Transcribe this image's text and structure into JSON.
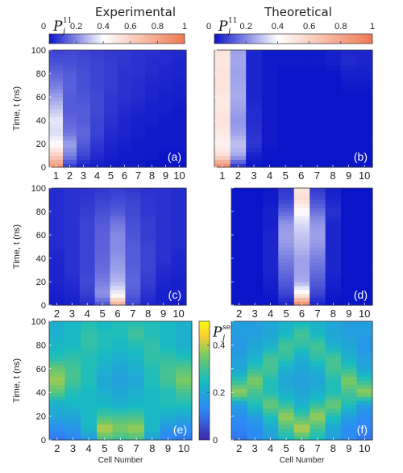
{
  "figure": {
    "col_titles": [
      "Experimental",
      "Theoretical"
    ],
    "y_axis_label": "Time, t (ns)",
    "x_axis_label": "Cell Number",
    "cbar_top": {
      "symbol": "P",
      "sub": "j",
      "sup": "11",
      "ticks": [
        "0",
        "0.2",
        "0.4",
        "0.6",
        "0.8",
        "1"
      ]
    },
    "cbar_side": {
      "symbol": "P",
      "sub": "j",
      "sup": "se",
      "ticks": [
        "0",
        "0.2",
        "0.4"
      ]
    },
    "colors": {
      "low": "#0a14c8",
      "mid": "#ffffff",
      "high": "#f07850",
      "parula": [
        "#3e26a8",
        "#2e87f7",
        "#18bcc0",
        "#73c868",
        "#f9d130",
        "#f9fb0e"
      ]
    }
  },
  "chart_data": [
    {
      "type": "heatmap",
      "panel_label": "(a)",
      "x_label": "Cell Number",
      "y_label": "Time, t (ns)",
      "x_ticks": [
        1,
        2,
        3,
        4,
        5,
        6,
        7,
        8,
        9,
        10
      ],
      "y_ticks": [
        0,
        20,
        40,
        60,
        80,
        100
      ],
      "xlim": [
        1,
        10
      ],
      "ylim": [
        0,
        100
      ],
      "colormap": "blue-white-orange",
      "clim": [
        0,
        1
      ],
      "cells": [
        1,
        2,
        3,
        4,
        5,
        6,
        7,
        8,
        9,
        10
      ],
      "times": [
        0,
        10,
        20,
        30,
        40,
        50,
        60,
        70,
        80,
        90,
        100
      ],
      "values": [
        [
          0.88,
          0.06,
          0.02,
          0.01,
          0.01,
          0.01,
          0.01,
          0.0,
          0.0,
          0.0
        ],
        [
          0.62,
          0.18,
          0.08,
          0.04,
          0.02,
          0.01,
          0.01,
          0.01,
          0.0,
          0.0
        ],
        [
          0.4,
          0.24,
          0.12,
          0.06,
          0.03,
          0.02,
          0.01,
          0.01,
          0.01,
          0.01
        ],
        [
          0.34,
          0.16,
          0.14,
          0.08,
          0.04,
          0.03,
          0.02,
          0.01,
          0.01,
          0.01
        ],
        [
          0.36,
          0.14,
          0.12,
          0.08,
          0.05,
          0.03,
          0.02,
          0.02,
          0.01,
          0.01
        ],
        [
          0.3,
          0.12,
          0.12,
          0.09,
          0.06,
          0.04,
          0.03,
          0.02,
          0.02,
          0.01
        ],
        [
          0.24,
          0.12,
          0.11,
          0.09,
          0.06,
          0.05,
          0.04,
          0.03,
          0.02,
          0.02
        ],
        [
          0.18,
          0.13,
          0.1,
          0.08,
          0.07,
          0.05,
          0.04,
          0.03,
          0.03,
          0.02
        ],
        [
          0.14,
          0.12,
          0.1,
          0.08,
          0.07,
          0.05,
          0.05,
          0.04,
          0.03,
          0.03
        ],
        [
          0.1,
          0.1,
          0.09,
          0.08,
          0.07,
          0.06,
          0.05,
          0.04,
          0.04,
          0.03
        ],
        [
          0.08,
          0.09,
          0.08,
          0.07,
          0.06,
          0.06,
          0.05,
          0.05,
          0.04,
          0.04
        ]
      ]
    },
    {
      "type": "heatmap",
      "panel_label": "(b)",
      "x_label": "Cell Number",
      "y_label": "Time, t (ns)",
      "x_ticks": [
        1,
        2,
        3,
        4,
        5,
        6,
        7,
        8,
        9,
        10
      ],
      "y_ticks": [
        0,
        20,
        40,
        60,
        80,
        100
      ],
      "xlim": [
        1,
        10
      ],
      "ylim": [
        0,
        100
      ],
      "colormap": "blue-white-orange",
      "clim": [
        0,
        1
      ],
      "cells": [
        1,
        2,
        3,
        4,
        5,
        6,
        7,
        8,
        9,
        10
      ],
      "times": [
        0,
        10,
        20,
        30,
        40,
        50,
        60,
        70,
        80,
        90,
        100
      ],
      "values": [
        [
          0.95,
          0.03,
          0.0,
          0.0,
          0.0,
          0.0,
          0.0,
          0.0,
          0.0,
          0.0
        ],
        [
          0.55,
          0.25,
          0.02,
          0.0,
          0.0,
          0.0,
          0.0,
          0.0,
          0.0,
          0.0
        ],
        [
          0.45,
          0.3,
          0.06,
          0.01,
          0.0,
          0.0,
          0.0,
          0.0,
          0.0,
          0.0
        ],
        [
          0.5,
          0.24,
          0.05,
          0.01,
          0.0,
          0.0,
          0.0,
          0.0,
          0.0,
          0.0
        ],
        [
          0.52,
          0.22,
          0.04,
          0.01,
          0.0,
          0.0,
          0.0,
          0.0,
          0.0,
          0.0
        ],
        [
          0.5,
          0.24,
          0.04,
          0.01,
          0.0,
          0.0,
          0.0,
          0.0,
          0.0,
          0.0
        ],
        [
          0.5,
          0.26,
          0.03,
          0.01,
          0.0,
          0.0,
          0.0,
          0.0,
          0.0,
          0.0
        ],
        [
          0.52,
          0.25,
          0.03,
          0.01,
          0.0,
          0.0,
          0.0,
          0.0,
          0.01,
          0.01
        ],
        [
          0.52,
          0.24,
          0.03,
          0.01,
          0.0,
          0.0,
          0.0,
          0.0,
          0.02,
          0.02
        ],
        [
          0.5,
          0.25,
          0.03,
          0.01,
          0.01,
          0.01,
          0.01,
          0.02,
          0.04,
          0.03
        ],
        [
          0.52,
          0.24,
          0.03,
          0.01,
          0.01,
          0.01,
          0.01,
          0.02,
          0.03,
          0.03
        ]
      ]
    },
    {
      "type": "heatmap",
      "panel_label": "(c)",
      "x_label": "Cell Number",
      "y_label": "Time, t (ns)",
      "x_ticks": [
        2,
        3,
        4,
        5,
        6,
        7,
        8,
        9,
        10
      ],
      "y_ticks": [
        0,
        20,
        40,
        60,
        80,
        100
      ],
      "xlim": [
        2,
        10
      ],
      "ylim": [
        0,
        100
      ],
      "colormap": "blue-white-orange",
      "clim": [
        0,
        1
      ],
      "cells": [
        2,
        3,
        4,
        5,
        6,
        7,
        8,
        9,
        10
      ],
      "times": [
        0,
        10,
        20,
        30,
        40,
        50,
        60,
        70,
        80,
        90,
        100
      ],
      "values": [
        [
          0.01,
          0.02,
          0.04,
          0.1,
          0.8,
          0.08,
          0.03,
          0.02,
          0.01
        ],
        [
          0.02,
          0.03,
          0.07,
          0.22,
          0.38,
          0.12,
          0.05,
          0.02,
          0.02
        ],
        [
          0.03,
          0.04,
          0.09,
          0.18,
          0.28,
          0.14,
          0.07,
          0.03,
          0.02
        ],
        [
          0.03,
          0.05,
          0.08,
          0.15,
          0.24,
          0.13,
          0.08,
          0.04,
          0.03
        ],
        [
          0.03,
          0.05,
          0.08,
          0.14,
          0.22,
          0.12,
          0.08,
          0.05,
          0.03
        ],
        [
          0.04,
          0.05,
          0.08,
          0.13,
          0.2,
          0.12,
          0.08,
          0.05,
          0.04
        ],
        [
          0.04,
          0.05,
          0.08,
          0.13,
          0.2,
          0.11,
          0.07,
          0.05,
          0.04
        ],
        [
          0.04,
          0.05,
          0.08,
          0.12,
          0.17,
          0.1,
          0.07,
          0.05,
          0.04
        ],
        [
          0.04,
          0.05,
          0.07,
          0.1,
          0.12,
          0.09,
          0.06,
          0.05,
          0.04
        ],
        [
          0.04,
          0.05,
          0.06,
          0.08,
          0.09,
          0.08,
          0.06,
          0.05,
          0.04
        ],
        [
          0.04,
          0.05,
          0.05,
          0.06,
          0.07,
          0.06,
          0.05,
          0.05,
          0.04
        ]
      ]
    },
    {
      "type": "heatmap",
      "panel_label": "(d)",
      "x_label": "Cell Number",
      "y_label": "Time, t (ns)",
      "x_ticks": [
        2,
        3,
        4,
        5,
        6,
        7,
        8,
        9,
        10
      ],
      "y_ticks": [
        0,
        20,
        40,
        60,
        80,
        100
      ],
      "xlim": [
        2,
        10
      ],
      "ylim": [
        0,
        100
      ],
      "colormap": "blue-white-orange",
      "clim": [
        0,
        1
      ],
      "cells": [
        2,
        3,
        4,
        5,
        6,
        7,
        8,
        9,
        10
      ],
      "times": [
        0,
        10,
        20,
        30,
        40,
        50,
        60,
        70,
        80,
        90,
        100
      ],
      "values": [
        [
          0.0,
          0.0,
          0.0,
          0.02,
          0.96,
          0.02,
          0.0,
          0.0,
          0.0
        ],
        [
          0.0,
          0.0,
          0.01,
          0.08,
          0.45,
          0.08,
          0.01,
          0.0,
          0.0
        ],
        [
          0.0,
          0.0,
          0.02,
          0.12,
          0.26,
          0.12,
          0.02,
          0.0,
          0.0
        ],
        [
          0.0,
          0.0,
          0.03,
          0.15,
          0.24,
          0.15,
          0.03,
          0.0,
          0.0
        ],
        [
          0.0,
          0.0,
          0.03,
          0.18,
          0.24,
          0.18,
          0.03,
          0.0,
          0.0
        ],
        [
          0.0,
          0.0,
          0.03,
          0.22,
          0.28,
          0.22,
          0.03,
          0.0,
          0.0
        ],
        [
          0.0,
          0.0,
          0.03,
          0.24,
          0.3,
          0.24,
          0.03,
          0.0,
          0.0
        ],
        [
          0.0,
          0.0,
          0.02,
          0.22,
          0.34,
          0.22,
          0.03,
          0.0,
          0.0
        ],
        [
          0.0,
          0.0,
          0.02,
          0.14,
          0.4,
          0.16,
          0.05,
          0.0,
          0.0
        ],
        [
          0.0,
          0.0,
          0.01,
          0.08,
          0.55,
          0.1,
          0.03,
          0.0,
          0.0
        ],
        [
          0.0,
          0.0,
          0.01,
          0.06,
          0.5,
          0.06,
          0.02,
          0.0,
          0.0
        ]
      ]
    },
    {
      "type": "heatmap",
      "panel_label": "(e)",
      "x_label": "Cell Number",
      "y_label": "Time, t (ns)",
      "x_ticks": [
        2,
        3,
        4,
        5,
        6,
        7,
        8,
        9,
        10
      ],
      "y_ticks": [
        0,
        20,
        40,
        60,
        80,
        100
      ],
      "xlim": [
        2,
        10
      ],
      "ylim": [
        0,
        100
      ],
      "colormap": "parula",
      "clim": [
        0,
        0.5
      ],
      "cells": [
        2,
        3,
        4,
        5,
        6,
        7,
        8,
        9,
        10
      ],
      "times": [
        0,
        10,
        20,
        30,
        40,
        50,
        60,
        70,
        80,
        90,
        100
      ],
      "values": [
        [
          0.1,
          0.12,
          0.16,
          0.3,
          0.28,
          0.3,
          0.18,
          0.12,
          0.1
        ],
        [
          0.14,
          0.16,
          0.24,
          0.4,
          0.36,
          0.38,
          0.24,
          0.16,
          0.14
        ],
        [
          0.2,
          0.2,
          0.24,
          0.3,
          0.3,
          0.3,
          0.24,
          0.22,
          0.2
        ],
        [
          0.22,
          0.24,
          0.24,
          0.24,
          0.22,
          0.24,
          0.24,
          0.26,
          0.26
        ],
        [
          0.32,
          0.26,
          0.24,
          0.22,
          0.2,
          0.22,
          0.24,
          0.26,
          0.3
        ],
        [
          0.38,
          0.3,
          0.26,
          0.2,
          0.18,
          0.2,
          0.26,
          0.3,
          0.36
        ],
        [
          0.34,
          0.3,
          0.26,
          0.22,
          0.2,
          0.22,
          0.26,
          0.3,
          0.32
        ],
        [
          0.26,
          0.28,
          0.26,
          0.24,
          0.22,
          0.24,
          0.28,
          0.28,
          0.26
        ],
        [
          0.24,
          0.24,
          0.28,
          0.26,
          0.24,
          0.26,
          0.28,
          0.24,
          0.22
        ],
        [
          0.22,
          0.24,
          0.28,
          0.26,
          0.26,
          0.3,
          0.26,
          0.24,
          0.22
        ],
        [
          0.22,
          0.24,
          0.26,
          0.24,
          0.26,
          0.26,
          0.26,
          0.24,
          0.22
        ]
      ]
    },
    {
      "type": "heatmap",
      "panel_label": "(f)",
      "x_label": "Cell Number",
      "y_label": "Time, t (ns)",
      "x_ticks": [
        2,
        3,
        4,
        5,
        6,
        7,
        8,
        9,
        10
      ],
      "y_ticks": [
        0,
        20,
        40,
        60,
        80,
        100
      ],
      "xlim": [
        2,
        10
      ],
      "ylim": [
        0,
        100
      ],
      "colormap": "parula",
      "clim": [
        0,
        0.5
      ],
      "cells": [
        2,
        3,
        4,
        5,
        6,
        7,
        8,
        9,
        10
      ],
      "times": [
        0,
        10,
        20,
        30,
        40,
        50,
        60,
        70,
        80,
        90,
        100
      ],
      "values": [
        [
          0.1,
          0.14,
          0.18,
          0.24,
          0.28,
          0.24,
          0.18,
          0.14,
          0.1
        ],
        [
          0.12,
          0.14,
          0.2,
          0.3,
          0.4,
          0.3,
          0.2,
          0.14,
          0.12
        ],
        [
          0.14,
          0.18,
          0.26,
          0.38,
          0.3,
          0.38,
          0.26,
          0.18,
          0.14
        ],
        [
          0.18,
          0.26,
          0.34,
          0.28,
          0.22,
          0.28,
          0.34,
          0.26,
          0.18
        ],
        [
          0.38,
          0.3,
          0.26,
          0.22,
          0.2,
          0.22,
          0.26,
          0.3,
          0.38
        ],
        [
          0.28,
          0.36,
          0.26,
          0.2,
          0.18,
          0.2,
          0.26,
          0.36,
          0.28
        ],
        [
          0.2,
          0.28,
          0.3,
          0.22,
          0.2,
          0.22,
          0.3,
          0.28,
          0.2
        ],
        [
          0.18,
          0.22,
          0.3,
          0.28,
          0.22,
          0.28,
          0.3,
          0.22,
          0.18
        ],
        [
          0.16,
          0.2,
          0.22,
          0.3,
          0.28,
          0.3,
          0.22,
          0.2,
          0.16
        ],
        [
          0.18,
          0.18,
          0.2,
          0.24,
          0.3,
          0.24,
          0.2,
          0.18,
          0.18
        ],
        [
          0.18,
          0.18,
          0.2,
          0.22,
          0.24,
          0.22,
          0.2,
          0.18,
          0.18
        ]
      ]
    }
  ]
}
